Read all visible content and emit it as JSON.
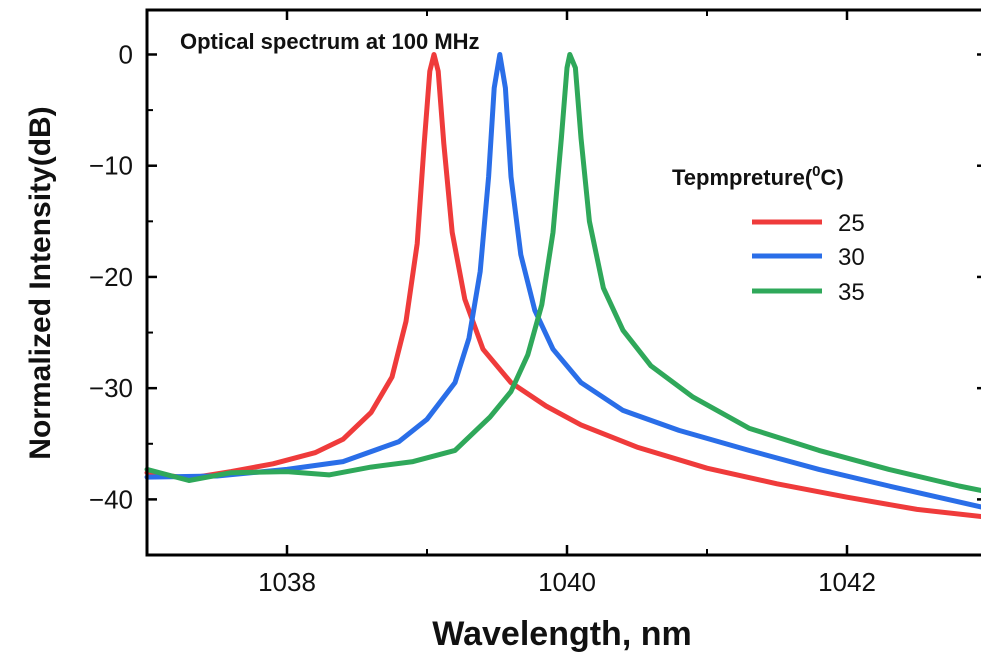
{
  "chart_data": {
    "type": "line",
    "title": "Optical spectrum at 100 MHz",
    "xlabel": "Wavelength, nm",
    "ylabel": "Normalized Intensity(dB)",
    "xlim": [
      1037,
      1043
    ],
    "ylim": [
      -45,
      4
    ],
    "xticks": [
      1038,
      1040,
      1042
    ],
    "yticks": [
      0,
      -10,
      -20,
      -30,
      -40
    ],
    "ytick_labels": [
      "0",
      "−10",
      "−20",
      "−30",
      "−40"
    ],
    "legend": {
      "title_main": "Tepmpreture(",
      "title_sup": "0",
      "title_end": "C)",
      "position": "right"
    },
    "grid": false,
    "series": [
      {
        "name": "25",
        "color": "#ef3b3b",
        "points": [
          [
            1037.0,
            -37.6
          ],
          [
            1037.3,
            -38.1
          ],
          [
            1037.6,
            -37.5
          ],
          [
            1037.9,
            -36.8
          ],
          [
            1038.2,
            -35.8
          ],
          [
            1038.4,
            -34.6
          ],
          [
            1038.6,
            -32.2
          ],
          [
            1038.75,
            -29.0
          ],
          [
            1038.85,
            -24.0
          ],
          [
            1038.93,
            -17.0
          ],
          [
            1038.98,
            -8.0
          ],
          [
            1039.02,
            -1.5
          ],
          [
            1039.05,
            0.0
          ],
          [
            1039.08,
            -1.5
          ],
          [
            1039.12,
            -8.0
          ],
          [
            1039.18,
            -16.0
          ],
          [
            1039.27,
            -22.0
          ],
          [
            1039.4,
            -26.5
          ],
          [
            1039.6,
            -29.5
          ],
          [
            1039.85,
            -31.6
          ],
          [
            1040.1,
            -33.3
          ],
          [
            1040.5,
            -35.3
          ],
          [
            1041.0,
            -37.2
          ],
          [
            1041.5,
            -38.6
          ],
          [
            1042.0,
            -39.8
          ],
          [
            1042.5,
            -40.9
          ],
          [
            1043.0,
            -41.6
          ]
        ]
      },
      {
        "name": "30",
        "color": "#2a6ee8",
        "points": [
          [
            1037.0,
            -38.0
          ],
          [
            1037.5,
            -37.9
          ],
          [
            1038.0,
            -37.3
          ],
          [
            1038.4,
            -36.6
          ],
          [
            1038.8,
            -34.8
          ],
          [
            1039.0,
            -32.8
          ],
          [
            1039.2,
            -29.5
          ],
          [
            1039.3,
            -25.5
          ],
          [
            1039.38,
            -19.5
          ],
          [
            1039.44,
            -11.0
          ],
          [
            1039.48,
            -3.0
          ],
          [
            1039.52,
            0.0
          ],
          [
            1039.56,
            -3.0
          ],
          [
            1039.6,
            -11.0
          ],
          [
            1039.67,
            -18.0
          ],
          [
            1039.77,
            -23.0
          ],
          [
            1039.9,
            -26.5
          ],
          [
            1040.1,
            -29.5
          ],
          [
            1040.4,
            -32.0
          ],
          [
            1040.8,
            -33.8
          ],
          [
            1041.3,
            -35.6
          ],
          [
            1041.8,
            -37.3
          ],
          [
            1042.3,
            -38.8
          ],
          [
            1043.0,
            -40.8
          ]
        ]
      },
      {
        "name": "35",
        "color": "#2fa85a",
        "points": [
          [
            1037.0,
            -37.3
          ],
          [
            1037.3,
            -38.3
          ],
          [
            1037.6,
            -37.6
          ],
          [
            1038.0,
            -37.5
          ],
          [
            1038.3,
            -37.8
          ],
          [
            1038.6,
            -37.1
          ],
          [
            1038.9,
            -36.6
          ],
          [
            1039.2,
            -35.6
          ],
          [
            1039.45,
            -32.6
          ],
          [
            1039.6,
            -30.3
          ],
          [
            1039.72,
            -27.0
          ],
          [
            1039.82,
            -22.5
          ],
          [
            1039.9,
            -16.0
          ],
          [
            1039.96,
            -7.5
          ],
          [
            1040.0,
            -1.2
          ],
          [
            1040.02,
            0.0
          ],
          [
            1040.06,
            -1.2
          ],
          [
            1040.1,
            -7.5
          ],
          [
            1040.16,
            -15.0
          ],
          [
            1040.26,
            -21.0
          ],
          [
            1040.4,
            -24.8
          ],
          [
            1040.6,
            -28.0
          ],
          [
            1040.9,
            -30.8
          ],
          [
            1041.3,
            -33.6
          ],
          [
            1041.8,
            -35.6
          ],
          [
            1042.3,
            -37.3
          ],
          [
            1042.8,
            -38.8
          ],
          [
            1043.0,
            -39.3
          ]
        ]
      }
    ]
  }
}
